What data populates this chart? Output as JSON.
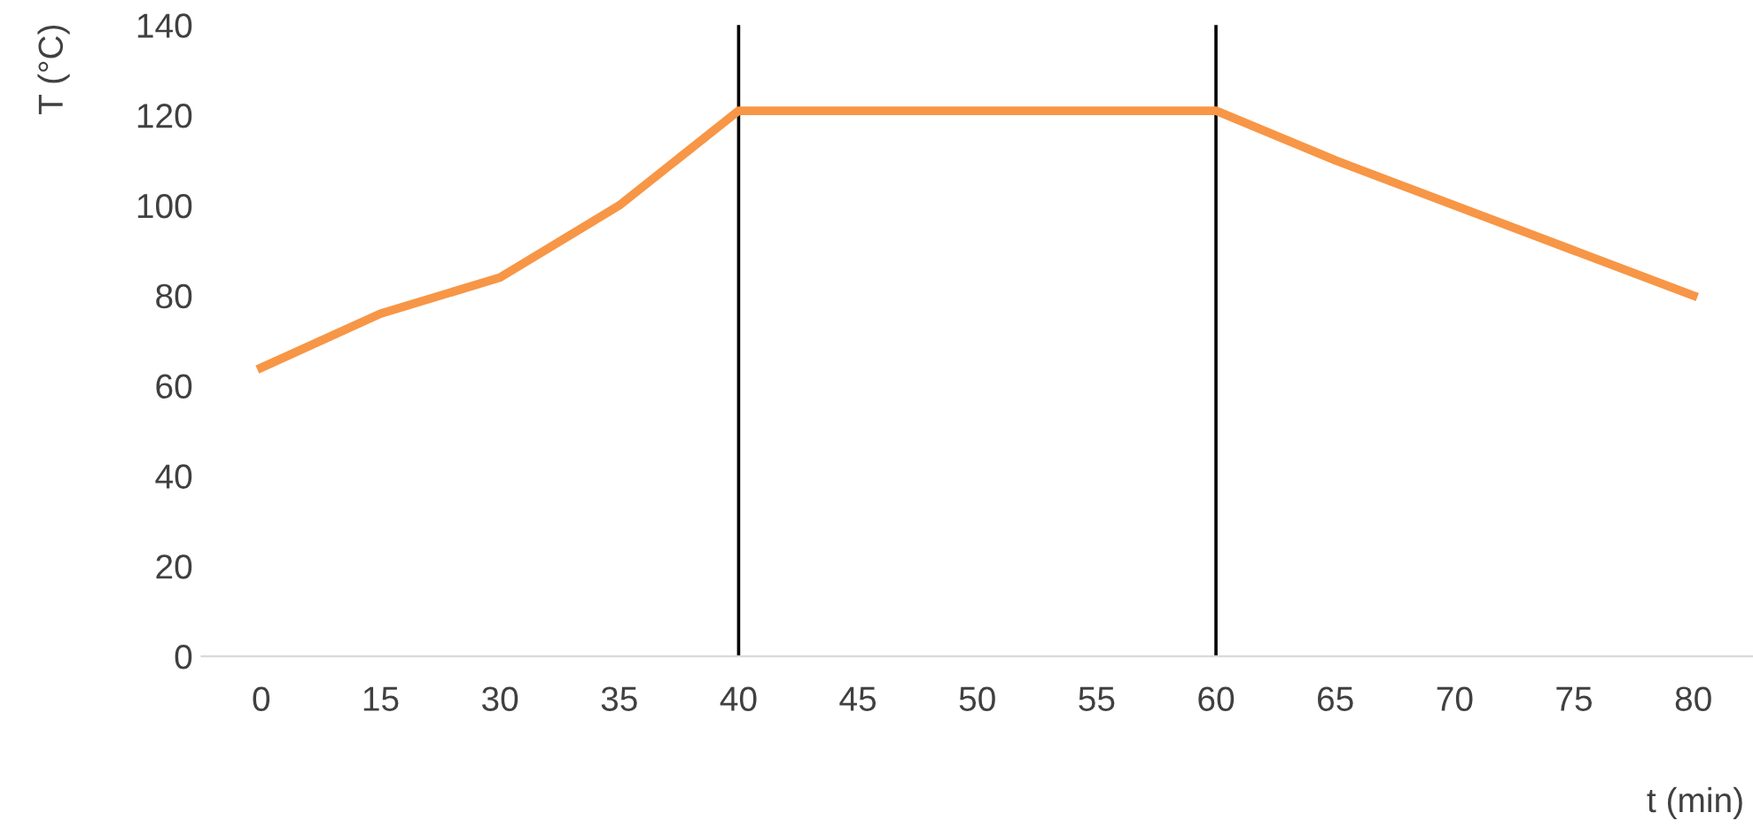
{
  "chart_data": {
    "type": "line",
    "xlabel": "t (min)",
    "ylabel": "T (°C)",
    "categories": [
      "0",
      "15",
      "30",
      "35",
      "40",
      "45",
      "50",
      "55",
      "60",
      "65",
      "70",
      "75",
      "80"
    ],
    "series": [
      {
        "color": "#f79646",
        "values": [
          64,
          76,
          84,
          100,
          121,
          121,
          121,
          121,
          121,
          110,
          100,
          90,
          80
        ]
      }
    ],
    "ylim": [
      0,
      140
    ],
    "yticks": [
      0,
      20,
      40,
      60,
      80,
      100,
      120,
      140
    ],
    "grid": false,
    "legend": false,
    "marker": "none",
    "line_style": "solid",
    "ref_lines": [
      {
        "axis": "x",
        "value": "40",
        "color": "#000000"
      },
      {
        "axis": "x",
        "value": "60",
        "color": "#000000"
      }
    ]
  }
}
